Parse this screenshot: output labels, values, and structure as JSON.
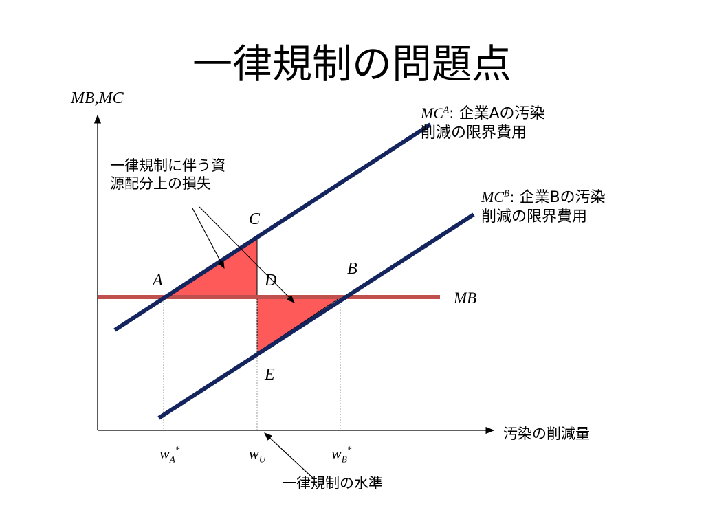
{
  "title": "一律規制の問題点",
  "axes": {
    "y_label": "MB,MC",
    "x_label": "汚染の削減量"
  },
  "curves": {
    "mca": {
      "name_main": "MC",
      "name_sup": "A",
      "sep": ":",
      "line1_rest": "企業Aの汚染",
      "line2": "削減の限界費用"
    },
    "mcb": {
      "name_main": "MC",
      "name_sup": "B",
      "sep": ":",
      "line1_rest": "企業Bの汚染",
      "line2": "削減の限界費用"
    },
    "mb": {
      "name": "MB"
    }
  },
  "points": {
    "a": "A",
    "b": "B",
    "c": "C",
    "d": "D",
    "e": "E"
  },
  "ticks": {
    "wa": {
      "base": "w",
      "sub": "A",
      "sup": "*"
    },
    "wu": {
      "base": "w",
      "sub": "U"
    },
    "wb": {
      "base": "w",
      "sub": "B",
      "sup": "*"
    }
  },
  "annotations": {
    "loss_line1": "一律規制に伴う資",
    "loss_line2": "源配分上の損失",
    "uniform_level": "一律規制の水準"
  },
  "colors": {
    "mc_lines": "#14245e",
    "mb_line": "#c0504d",
    "loss_fill": "#ff5a5a",
    "axis": "#000000"
  }
}
